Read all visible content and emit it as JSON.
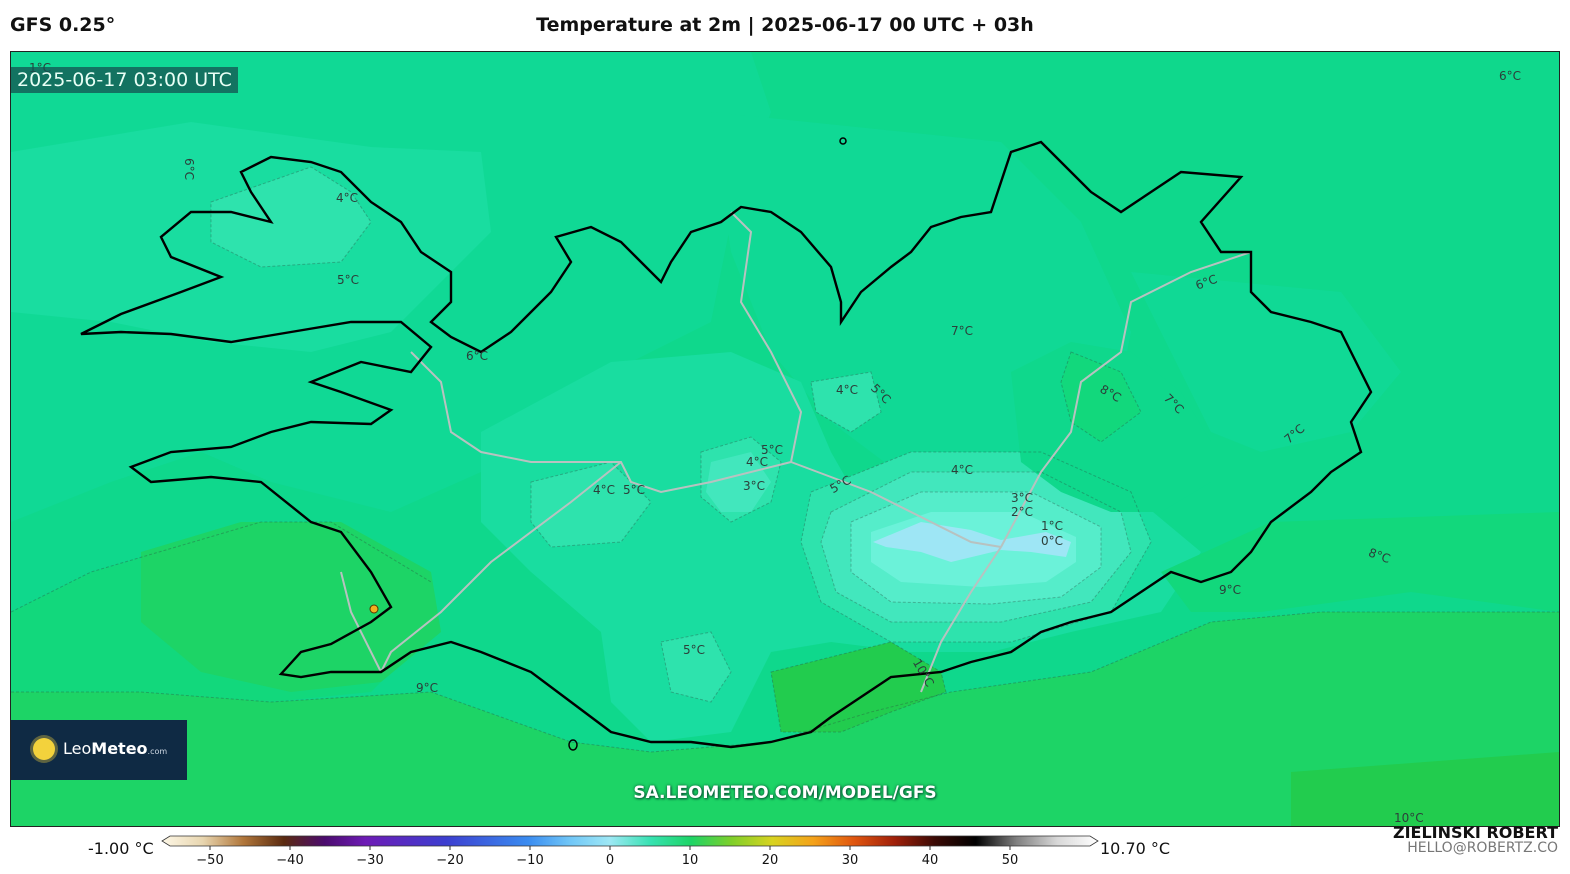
{
  "header": {
    "model": "GFS 0.25°",
    "title": "Temperature at 2m | 2025-06-17 00 UTC + 03h"
  },
  "map": {
    "valid_time": "2025-06-17 03:00 UTC",
    "watermark_url": "SA.LEOMETEO.COM/MODEL/GFS",
    "contour_labels": [
      "1°C",
      "6°C",
      "6°C",
      "4°C",
      "5°C",
      "6°C",
      "7°C",
      "4°C",
      "5°C",
      "5°C",
      "4°C",
      "4°C",
      "5°C",
      "3°C",
      "5°C",
      "4°C",
      "3°C",
      "2°C",
      "1°C",
      "0°C",
      "6°C",
      "8°C",
      "7°C",
      "7°C",
      "8°C",
      "9°C",
      "5°C",
      "10°C",
      "9°C",
      "10°C"
    ],
    "colors": {
      "t10": "#22cc4e",
      "t9": "#1dd466",
      "t8": "#12d87c",
      "t7": "#0fd88c",
      "t6": "#10d995",
      "t5": "#19dda0",
      "t4": "#2ee3ad",
      "t3": "#42e7bd",
      "t2": "#55edca",
      "t1": "#6bf2d9",
      "t0": "#9ee6f5",
      "coast": "#000000",
      "road": "#b8c2c0"
    }
  },
  "logo": {
    "brand_light": "Leo",
    "brand_bold": "Meteo",
    "domain": ".com"
  },
  "colorbar": {
    "min_label": "-1.00 °C",
    "max_label": "10.70 °C",
    "ticks": [
      "−50",
      "−40",
      "−30",
      "−20",
      "−10",
      "0",
      "10",
      "20",
      "30",
      "40",
      "50"
    ],
    "tick_values": [
      -50,
      -40,
      -30,
      -20,
      -10,
      0,
      10,
      20,
      30,
      40,
      50
    ],
    "range": [
      -55,
      60
    ],
    "stops": [
      {
        "v": -55,
        "c": "#fdf7e6"
      },
      {
        "v": -50,
        "c": "#e8d6b0"
      },
      {
        "v": -45,
        "c": "#b0763a"
      },
      {
        "v": -40,
        "c": "#5a2a10"
      },
      {
        "v": -35,
        "c": "#4b0b6e"
      },
      {
        "v": -30,
        "c": "#6d1bb5"
      },
      {
        "v": -20,
        "c": "#3c3fd0"
      },
      {
        "v": -10,
        "c": "#3a8cf0"
      },
      {
        "v": -5,
        "c": "#6fc5f7"
      },
      {
        "v": 0,
        "c": "#9ee8f5"
      },
      {
        "v": 5,
        "c": "#38e2b2"
      },
      {
        "v": 10,
        "c": "#1dd466"
      },
      {
        "v": 15,
        "c": "#7fcf2a"
      },
      {
        "v": 20,
        "c": "#d8d320"
      },
      {
        "v": 25,
        "c": "#f4a21a"
      },
      {
        "v": 30,
        "c": "#e0560f"
      },
      {
        "v": 35,
        "c": "#a0200a"
      },
      {
        "v": 40,
        "c": "#3a0a05"
      },
      {
        "v": 45,
        "c": "#000000"
      },
      {
        "v": 50,
        "c": "#808080"
      },
      {
        "v": 55,
        "c": "#d8d8d8"
      },
      {
        "v": 60,
        "c": "#ffffff"
      }
    ]
  },
  "credit": {
    "name": "ZIELINSKI ROBERT",
    "email": "HELLO@ROBERTZ.CO"
  }
}
